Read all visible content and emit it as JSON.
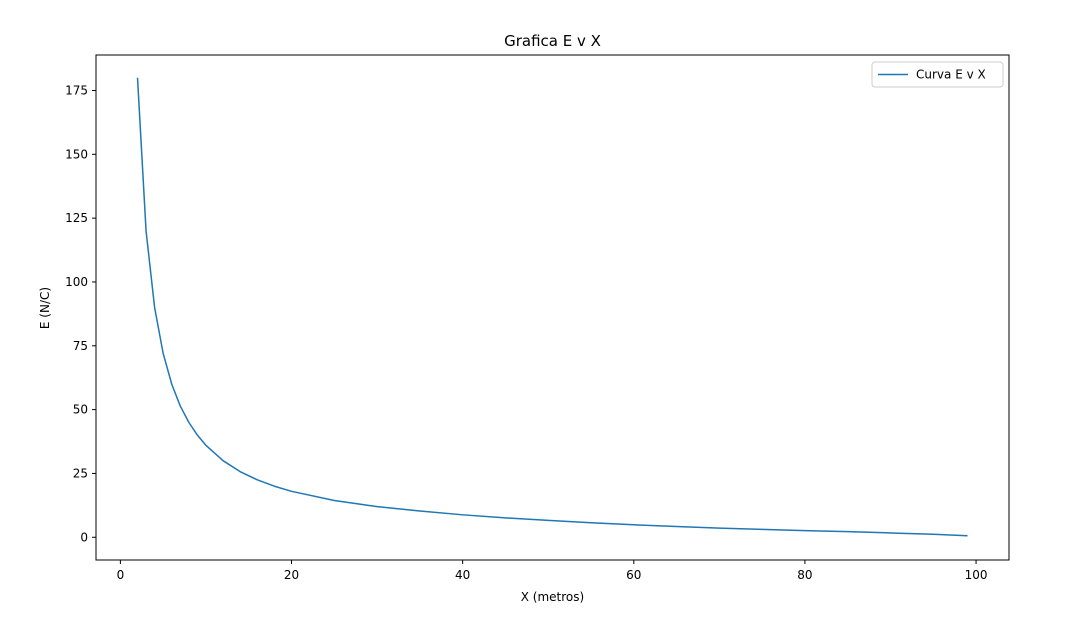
{
  "chart_data": {
    "type": "line",
    "title": "Grafica E v X",
    "xlabel": "X (metros)",
    "ylabel": "E (N/C)",
    "xlim": [
      -2.85,
      103.85
    ],
    "ylim": [
      -8.9,
      188.9
    ],
    "xticks": [
      0,
      20,
      40,
      60,
      80,
      100
    ],
    "yticks": [
      0,
      25,
      50,
      75,
      100,
      125,
      150,
      175
    ],
    "grid": false,
    "legend_position": "top-right",
    "series": [
      {
        "name": "Curva E v X",
        "color": "#1f77b4",
        "x": [
          2,
          3,
          4,
          5,
          6,
          7,
          8,
          9,
          10,
          12,
          14,
          16,
          18,
          20,
          25,
          30,
          35,
          40,
          45,
          50,
          55,
          60,
          65,
          70,
          75,
          80,
          85,
          90,
          95,
          99
        ],
        "y": [
          180,
          120,
          90,
          72,
          60,
          51.4,
          45,
          40,
          36,
          30,
          25.7,
          22.5,
          20,
          18,
          14.4,
          12,
          10.3,
          8.8,
          7.6,
          6.6,
          5.7,
          4.9,
          4.2,
          3.6,
          3.1,
          2.6,
          2.2,
          1.7,
          1.2,
          0.6
        ]
      }
    ]
  }
}
